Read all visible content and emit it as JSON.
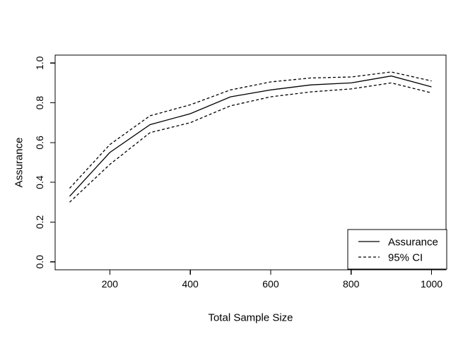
{
  "figure": {
    "background_color": "#ffffff",
    "foreground_color": "#000000"
  },
  "chart_data": {
    "type": "line",
    "title": "",
    "xlabel": "Total Sample Size",
    "ylabel": "Assurance",
    "x": [
      100,
      200,
      300,
      400,
      500,
      600,
      700,
      800,
      900,
      1000
    ],
    "series": [
      {
        "name": "Assurance",
        "style": "solid",
        "values": [
          0.33,
          0.55,
          0.69,
          0.745,
          0.83,
          0.865,
          0.89,
          0.9,
          0.935,
          0.88
        ]
      },
      {
        "name": "95% CI upper",
        "style": "dashed",
        "values": [
          0.37,
          0.59,
          0.735,
          0.79,
          0.865,
          0.905,
          0.925,
          0.93,
          0.955,
          0.91
        ]
      },
      {
        "name": "95% CI lower",
        "style": "dashed",
        "values": [
          0.3,
          0.49,
          0.65,
          0.7,
          0.785,
          0.83,
          0.855,
          0.87,
          0.9,
          0.85
        ]
      }
    ],
    "xticks": [
      200,
      400,
      600,
      800,
      1000
    ],
    "xtick_labels": [
      "200",
      "400",
      "600",
      "800",
      "1000"
    ],
    "yticks": [
      0.0,
      0.2,
      0.4,
      0.6,
      0.8,
      1.0
    ],
    "ytick_labels": [
      "0.0",
      "0.2",
      "0.4",
      "0.6",
      "0.8",
      "1.0"
    ],
    "xlim": [
      64,
      1036
    ],
    "ylim": [
      -0.04,
      1.04
    ],
    "grid": false,
    "legend": {
      "position": "bottomright",
      "entries": [
        {
          "label": "Assurance",
          "style": "solid"
        },
        {
          "label": "95% CI",
          "style": "dashed"
        }
      ]
    }
  }
}
